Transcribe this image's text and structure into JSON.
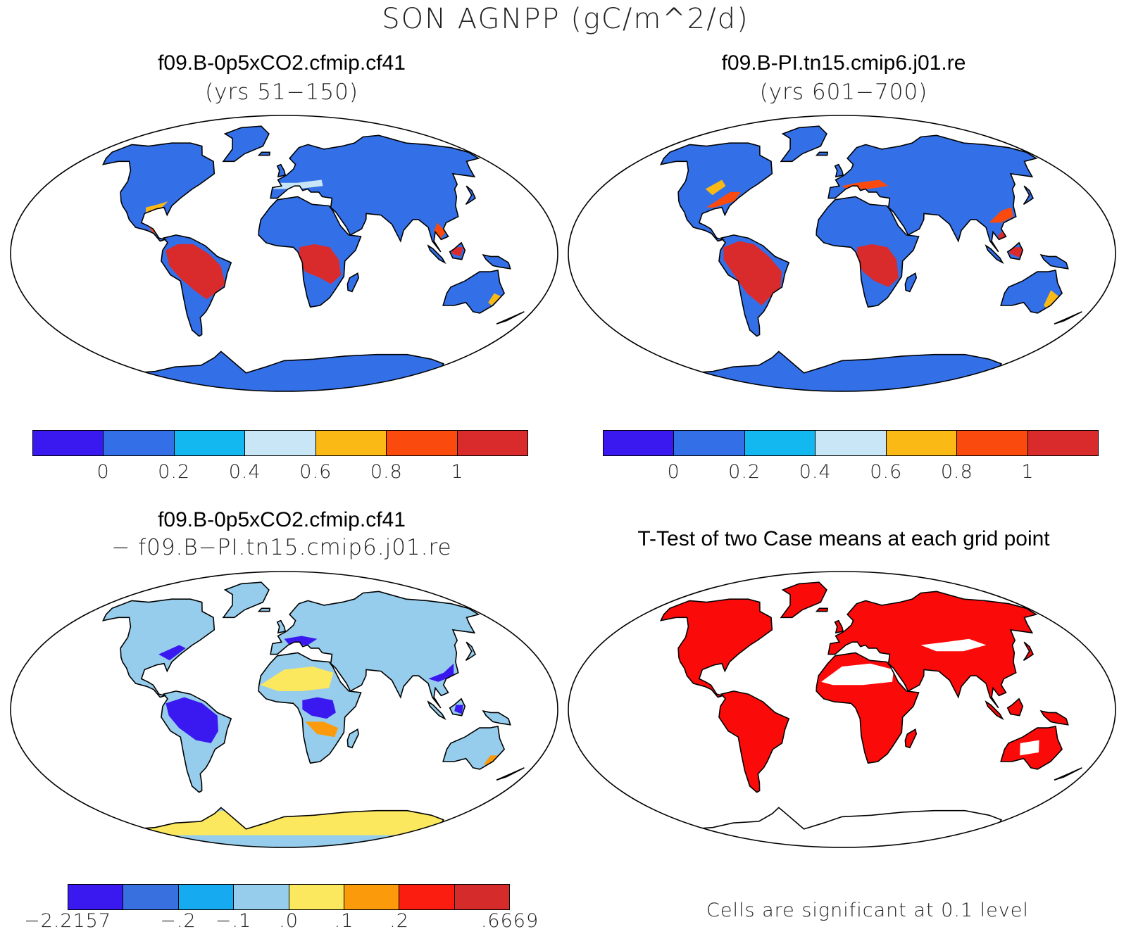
{
  "title": "SON AGNPP (gC/m^2/d)",
  "panels": {
    "case1": {
      "title": "f09.B-0p5xCO2.cfmip.cf41",
      "subtitle": "(yrs 51−150)"
    },
    "case2": {
      "title": "f09.B-PI.tn15.cmip6.j01.re",
      "subtitle": "(yrs 601−700)"
    },
    "diff": {
      "title": "f09.B-0p5xCO2.cfmip.cf41",
      "subtitle": "− f09.B−PI.tn15.cmip6.j01.re"
    },
    "ttest": {
      "title": "T-Test of two Case means at each grid point",
      "note": "Cells are significant at 0.1 level"
    }
  },
  "colorbars": {
    "case": {
      "colors": [
        "#3a18f0",
        "#3370e8",
        "#14b8f0",
        "#c8e6f5",
        "#fbb916",
        "#fb4a0d",
        "#d92b2b"
      ],
      "labels": [
        "0",
        "0.2",
        "0.4",
        "0.6",
        "0.8",
        "1"
      ]
    },
    "diff": {
      "colors": [
        "#3a18f0",
        "#3870e0",
        "#16aaf0",
        "#96cdec",
        "#fbe85e",
        "#fb9a0a",
        "#fb1e10",
        "#d62b2b"
      ],
      "labels": [
        "−2.2157",
        "−.2",
        "−.1",
        ".0",
        ".1",
        ".2",
        ".6669"
      ]
    }
  },
  "map_colors": {
    "land_case": "#3370e8",
    "tropics_case": "#d92b2b",
    "transition_case": "#fb4a0d",
    "edge_case": "#fbb916",
    "light_case": "#c8e6f5",
    "land_diff": "#96cdec",
    "neg_diff": "#3a18f0",
    "yellow_diff": "#fbe85e",
    "orange_diff": "#fb9a0a",
    "significant": "#fb0a0a"
  }
}
